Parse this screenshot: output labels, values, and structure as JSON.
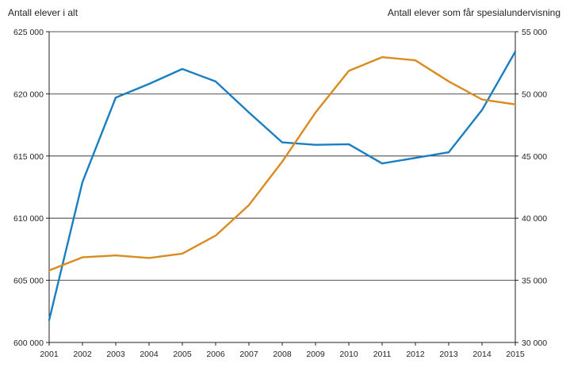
{
  "chart_data": {
    "type": "line",
    "title": "",
    "ylabel_left": "Antall elever i alt",
    "ylabel_right": "Antall elever som får spesialundervisning",
    "x": [
      2001,
      2002,
      2003,
      2004,
      2005,
      2006,
      2007,
      2008,
      2009,
      2010,
      2011,
      2012,
      2013,
      2014,
      2015
    ],
    "x_tick_labels": [
      "2001",
      "2002",
      "2003",
      "2004",
      "2005",
      "2006",
      "2007",
      "2008",
      "2009",
      "2010",
      "2011",
      "2012",
      "2013",
      "2014",
      "2015"
    ],
    "ylim_left": [
      600000,
      625000
    ],
    "ylim_right": [
      30000,
      55000
    ],
    "y_ticks_left": [
      600000,
      605000,
      610000,
      615000,
      620000,
      625000
    ],
    "y_tick_labels_left": [
      "600 000",
      "605 000",
      "610 000",
      "615 000",
      "620 000",
      "625 000"
    ],
    "y_ticks_right": [
      30000,
      35000,
      40000,
      45000,
      50000,
      55000
    ],
    "y_tick_labels_right": [
      "30 000",
      "35 000",
      "40 000",
      "45 000",
      "50 000",
      "55 000"
    ],
    "grid": true,
    "series": [
      {
        "name": "Antall elever i alt",
        "axis": "left",
        "color": "#1a7fc2",
        "values": [
          601800,
          612900,
          619700,
          620800,
          622000,
          621000,
          618500,
          616100,
          615900,
          615950,
          614400,
          614850,
          615300,
          618700,
          623400
        ]
      },
      {
        "name": "Antall elever som får spesialundervisning",
        "axis": "right",
        "color": "#d98b1f",
        "values": [
          35800,
          36850,
          37000,
          36800,
          37150,
          38600,
          41050,
          44550,
          48500,
          51850,
          52950,
          52700,
          51000,
          49550,
          49150
        ]
      }
    ]
  }
}
